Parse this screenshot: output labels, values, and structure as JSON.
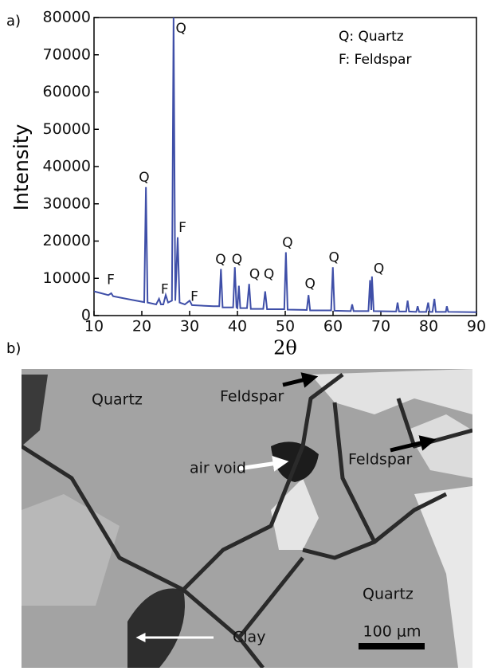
{
  "chart_data": {
    "type": "line",
    "panel_label": "a)",
    "xlabel": "2θ",
    "ylabel": "Intensity",
    "color": "#3f4fa8",
    "xlim": [
      10,
      90
    ],
    "ylim": [
      0,
      80000
    ],
    "xticks": [
      10,
      20,
      30,
      40,
      50,
      60,
      70,
      80,
      90
    ],
    "yticks": [
      0,
      10000,
      20000,
      30000,
      40000,
      50000,
      60000,
      70000,
      80000
    ],
    "key": [
      "Q: Quartz",
      "F:  Feldspar"
    ],
    "x": [
      10,
      13,
      13.6,
      14,
      18,
      20.5,
      20.86,
      21.2,
      23,
      23.6,
      24,
      24.5,
      25,
      25.5,
      26.3,
      26.64,
      27.0,
      27.5,
      27.9,
      29,
      30.0,
      30.5,
      35,
      36.2,
      36.55,
      36.9,
      39.1,
      39.46,
      39.8,
      40.0,
      40.3,
      40.6,
      42,
      42.45,
      42.8,
      45.4,
      45.8,
      46.2,
      49.8,
      50.14,
      50.5,
      54.5,
      54.87,
      55.2,
      59.6,
      59.96,
      60.3,
      63.7,
      64.0,
      64.3,
      67.4,
      67.74,
      68.0,
      68.14,
      68.5,
      73.2,
      73.5,
      73.8,
      75.3,
      75.6,
      75.9,
      77.4,
      77.7,
      78.0,
      79.5,
      79.9,
      80.2,
      80.8,
      81.2,
      81.5,
      83.6,
      83.8,
      84.1,
      90
    ],
    "values": [
      6500,
      5500,
      6000,
      5200,
      4200,
      3600,
      34500,
      3500,
      3000,
      4500,
      3000,
      3000,
      5500,
      3500,
      4000,
      80000,
      4000,
      21000,
      3500,
      3000,
      4000,
      2800,
      2500,
      2500,
      12500,
      2200,
      2200,
      13000,
      2200,
      2000,
      8000,
      2000,
      2000,
      8500,
      1800,
      1800,
      6500,
      1700,
      1700,
      17000,
      1600,
      1500,
      5500,
      1400,
      1400,
      13000,
      1300,
      1200,
      3000,
      1200,
      1200,
      9500,
      1500,
      10500,
      1200,
      1100,
      3500,
      1100,
      1100,
      4000,
      1100,
      1000,
      2500,
      1000,
      1000,
      3500,
      1000,
      1000,
      4500,
      1000,
      1000,
      2500,
      1000,
      900
    ],
    "annotations": [
      {
        "text": "F",
        "x": 13.5,
        "y": 9500
      },
      {
        "text": "Q",
        "x": 20.5,
        "y": 37000
      },
      {
        "text": "Q",
        "x": 28.2,
        "y": 77000
      },
      {
        "text": "F",
        "x": 28.5,
        "y": 23500
      },
      {
        "text": "F",
        "x": 24.8,
        "y": 7000
      },
      {
        "text": "F",
        "x": 31,
        "y": 5000
      },
      {
        "text": "Q",
        "x": 36.5,
        "y": 15000
      },
      {
        "text": "Q",
        "x": 39.9,
        "y": 15000
      },
      {
        "text": "Q",
        "x": 43.6,
        "y": 11000
      },
      {
        "text": "Q",
        "x": 46.6,
        "y": 11000
      },
      {
        "text": "Q",
        "x": 50.5,
        "y": 19500
      },
      {
        "text": "Q",
        "x": 55.2,
        "y": 8500
      },
      {
        "text": "Q",
        "x": 60.2,
        "y": 15500
      },
      {
        "text": "Q",
        "x": 69.6,
        "y": 12500
      }
    ]
  },
  "sem_image": {
    "panel_label": "b)",
    "labels": [
      "Quartz",
      "Feldspar",
      "air void",
      "Feldspar",
      "Quartz",
      "Clay"
    ],
    "scale_bar": "100 μm"
  }
}
